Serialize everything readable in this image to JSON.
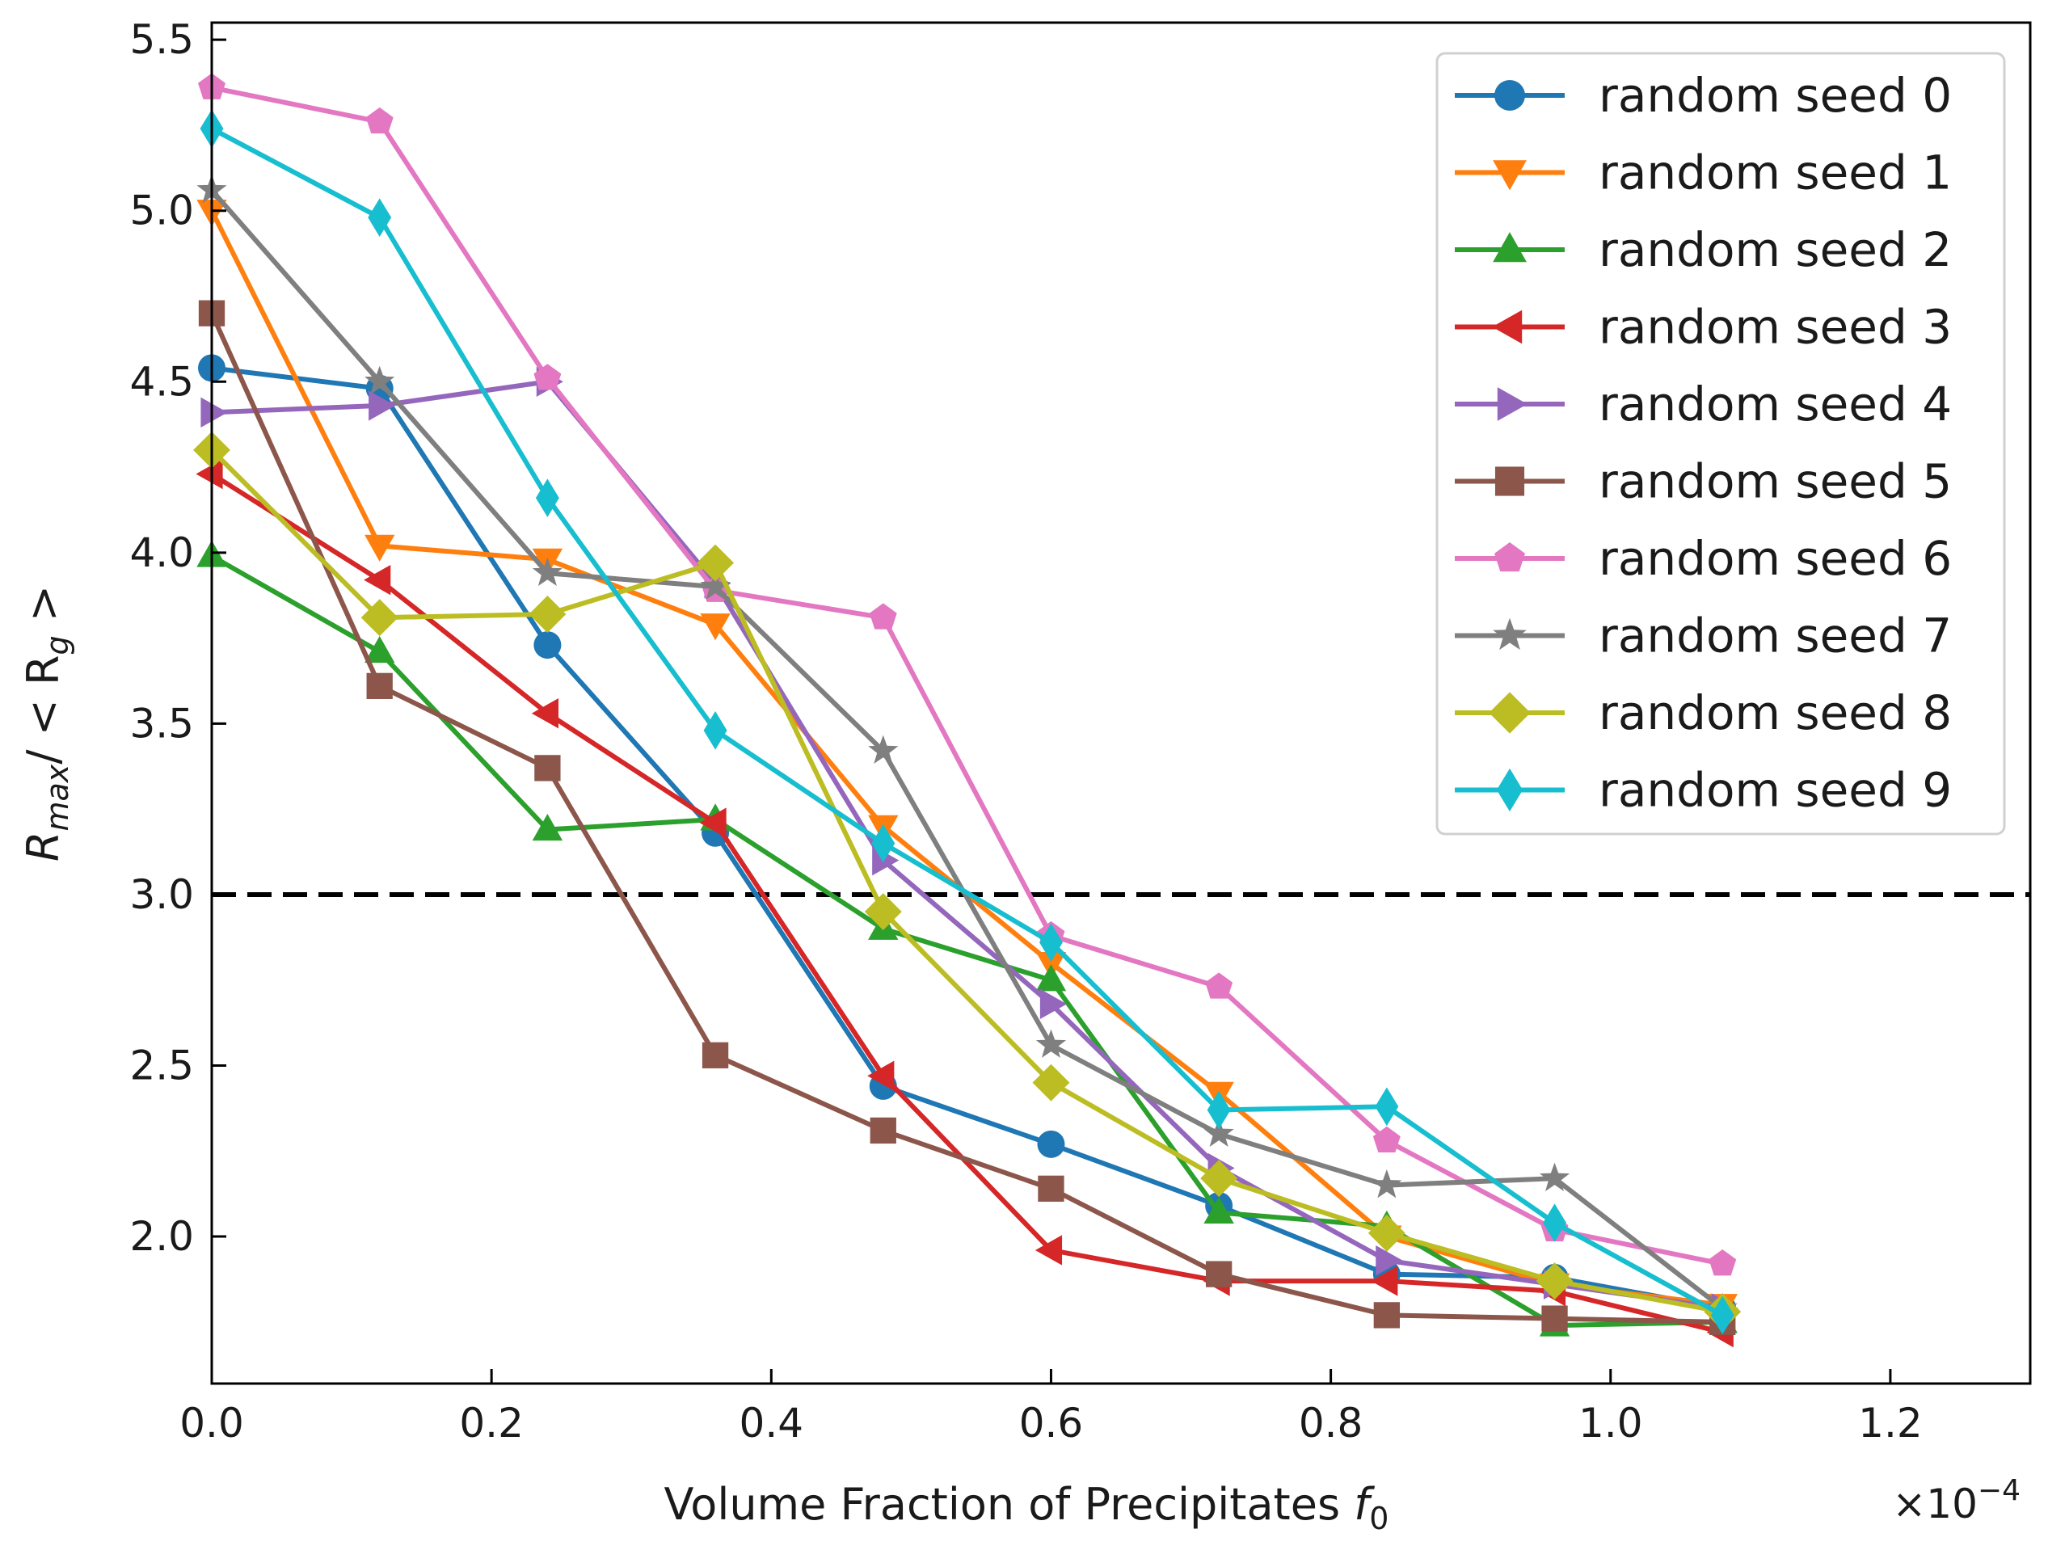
{
  "chart_data": {
    "type": "line",
    "title": "",
    "xlabel": "Volume Fraction of Precipitates f_0",
    "xlabel_main": "Volume Fraction of Precipitates ",
    "xlabel_var": "f",
    "xlabel_sub": "0",
    "ylabel_main": "R",
    "ylabel_sub": "max",
    "ylabel_mid": "/ < R",
    "ylabel_sub2": "g",
    "ylabel_end": " >",
    "x_offset_text": "×10",
    "x_offset_exp": "−4",
    "xlim": [
      0.0,
      1.3
    ],
    "ylim": [
      1.57,
      5.55
    ],
    "xticks": [
      0.0,
      0.2,
      0.4,
      0.6,
      0.8,
      1.0,
      1.2
    ],
    "xtick_labels": [
      "0.0",
      "0.2",
      "0.4",
      "0.6",
      "0.8",
      "1.0",
      "1.2"
    ],
    "yticks": [
      2.0,
      2.5,
      3.0,
      3.5,
      4.0,
      4.5,
      5.0,
      5.5
    ],
    "ytick_labels": [
      "2.0",
      "2.5",
      "3.0",
      "3.5",
      "4.0",
      "4.5",
      "5.0",
      "5.5"
    ],
    "reference_line": {
      "y": 3.0,
      "style": "dashed",
      "color": "#000000"
    },
    "legend_position": "top-right",
    "x": [
      0.0,
      0.12,
      0.24,
      0.36,
      0.48,
      0.6,
      0.72,
      0.84,
      0.96,
      1.08
    ],
    "series": [
      {
        "name": "random seed 0",
        "color": "#1f77b4",
        "marker": "circle",
        "values": [
          4.54,
          4.48,
          3.73,
          3.18,
          2.44,
          2.27,
          2.09,
          1.89,
          1.88,
          1.79
        ]
      },
      {
        "name": "random seed 1",
        "color": "#ff7f0e",
        "marker": "triangle-down",
        "values": [
          5.0,
          4.02,
          3.98,
          3.79,
          3.2,
          2.8,
          2.42,
          2.0,
          1.86,
          1.8
        ]
      },
      {
        "name": "random seed 2",
        "color": "#2ca02c",
        "marker": "triangle-up",
        "values": [
          3.99,
          3.71,
          3.19,
          3.22,
          2.9,
          2.75,
          2.07,
          2.03,
          1.74,
          1.75
        ]
      },
      {
        "name": "random seed 3",
        "color": "#d62728",
        "marker": "triangle-left",
        "values": [
          4.23,
          3.92,
          3.53,
          3.21,
          2.47,
          1.96,
          1.87,
          1.87,
          1.84,
          1.72
        ]
      },
      {
        "name": "random seed 4",
        "color": "#9467bd",
        "marker": "triangle-right",
        "values": [
          4.41,
          4.43,
          4.5,
          3.91,
          3.1,
          2.68,
          2.2,
          1.93,
          1.86,
          1.79
        ]
      },
      {
        "name": "random seed 5",
        "color": "#8c564b",
        "marker": "square",
        "values": [
          4.7,
          3.61,
          3.37,
          2.53,
          2.31,
          2.14,
          1.89,
          1.77,
          1.76,
          1.75
        ]
      },
      {
        "name": "random seed 6",
        "color": "#e377c2",
        "marker": "pentagon",
        "values": [
          5.36,
          5.26,
          4.51,
          3.89,
          3.81,
          2.88,
          2.73,
          2.28,
          2.02,
          1.92
        ]
      },
      {
        "name": "random seed 7",
        "color": "#7f7f7f",
        "marker": "star",
        "values": [
          5.06,
          4.5,
          3.94,
          3.9,
          3.42,
          2.56,
          2.3,
          2.15,
          2.17,
          1.79
        ]
      },
      {
        "name": "random seed 8",
        "color": "#bcbd22",
        "marker": "diamond",
        "values": [
          4.3,
          3.81,
          3.82,
          3.97,
          2.95,
          2.45,
          2.17,
          2.01,
          1.87,
          1.78
        ]
      },
      {
        "name": "random seed 9",
        "color": "#17becf",
        "marker": "thin-diamond",
        "values": [
          5.24,
          4.98,
          4.16,
          3.48,
          3.15,
          2.86,
          2.37,
          2.38,
          2.04,
          1.77
        ]
      }
    ]
  }
}
